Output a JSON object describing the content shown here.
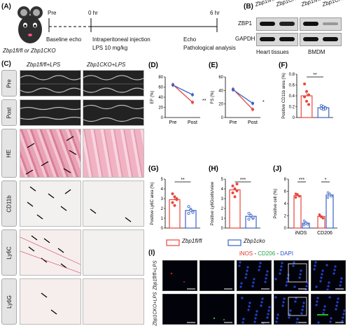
{
  "panels": {
    "A": {
      "letter": "(A)",
      "pre": "Pre",
      "hr0": "0 hr",
      "hr6": "6 hr",
      "baseline": "Baseline echo",
      "injection": "Intraperitoneal injection",
      "lps": "LPS 10 mg/kg",
      "echo": "Echo",
      "pathology": "Pathological analysis",
      "mice": "Zbp1fl/fl or Zbp1CKO"
    },
    "B": {
      "letter": "(B)",
      "col1": "Zbp1fl/fl",
      "col2": "Zbp1CKO",
      "row1": "ZBP1",
      "row2": "GAPDH",
      "tissue1": "Heart tissues",
      "tissue2": "BMDM"
    },
    "C": {
      "letter": "(C)",
      "col1": "Zbp1fl/fl+LPS",
      "col2": "Zbp1CKO+LPS",
      "rows": [
        "Pre",
        "Post",
        "HE",
        "CD11b",
        "Ly6C",
        "Ly6G"
      ]
    },
    "D": {
      "letter": "(D)",
      "ylabel": "EF (%)",
      "sig": "**"
    },
    "E": {
      "letter": "(E)",
      "ylabel": "FS (%)",
      "sig": "*"
    },
    "F": {
      "letter": "(F)",
      "ylabel": "Positive CD11b area (%)",
      "sig": "**"
    },
    "G": {
      "letter": "(G)",
      "ylabel": "Positive Ly6C area (%)",
      "sig": "**"
    },
    "H": {
      "letter": "(H)",
      "ylabel": "Positive Ly6Gcells/view",
      "sig": "***"
    },
    "J": {
      "letter": "(J)",
      "ylabel": "Positive cell (%)",
      "sig1": "***",
      "sig2": "*"
    },
    "I": {
      "letter": "(I)",
      "title_ir": "iNOS",
      "title_sep": " - ",
      "title_cd": "CD206",
      "title_dapi": "DAPI",
      "row1": "Zbp1fl/fl+LPS",
      "row2": "Zbp1CKO+LPS"
    }
  },
  "legend": {
    "fl": "Zbp1fl/fl",
    "cko": "Zbp1cko"
  },
  "colors": {
    "fl": "#e8473d",
    "cko": "#3a63c8"
  },
  "chart_data": [
    {
      "id": "D",
      "type": "line",
      "categories": [
        "Pre",
        "Post"
      ],
      "series": [
        {
          "name": "Zbp1fl/fl",
          "values": [
            65,
            30
          ]
        },
        {
          "name": "Zbp1cko",
          "values": [
            64,
            45
          ]
        }
      ],
      "ylim": [
        0,
        80
      ],
      "yticks": [
        0,
        20,
        40,
        60,
        80
      ],
      "ylabel": "EF (%)"
    },
    {
      "id": "E",
      "type": "line",
      "categories": [
        "Pre",
        "Post"
      ],
      "series": [
        {
          "name": "Zbp1fl/fl",
          "values": [
            42,
            12
          ]
        },
        {
          "name": "Zbp1cko",
          "values": [
            41,
            21
          ]
        }
      ],
      "ylim": [
        0,
        60
      ],
      "yticks": [
        0,
        20,
        40,
        60
      ],
      "ylabel": "FS (%)"
    },
    {
      "id": "F",
      "type": "bar",
      "series": [
        {
          "name": "Zbp1fl/fl",
          "value": 0.4,
          "points": [
            0.62,
            0.48,
            0.42,
            0.38,
            0.3,
            0.24
          ]
        },
        {
          "name": "Zbp1cko",
          "value": 0.18,
          "points": [
            0.22,
            0.2,
            0.18,
            0.17,
            0.15,
            0.16
          ]
        }
      ],
      "ylim": [
        0,
        0.8
      ],
      "yticks": [
        0.0,
        0.2,
        0.4,
        0.6,
        0.8
      ],
      "ylabel": "Positive CD11b area (%)"
    },
    {
      "id": "G",
      "type": "bar",
      "series": [
        {
          "name": "Zbp1fl/fl",
          "value": 2.9,
          "points": [
            3.5,
            3.2,
            2.9,
            2.6,
            2.3,
            3.0
          ]
        },
        {
          "name": "Zbp1cko",
          "value": 1.8,
          "points": [
            2.2,
            1.9,
            1.7,
            1.5,
            1.8,
            1.6
          ]
        }
      ],
      "ylim": [
        0,
        5
      ],
      "yticks": [
        0,
        1,
        2,
        3,
        4,
        5
      ],
      "ylabel": "Positive Ly6C area (%)"
    },
    {
      "id": "H",
      "type": "bar",
      "series": [
        {
          "name": "Zbp1fl/fl",
          "value": 3.9,
          "points": [
            4.3,
            4.0,
            3.8,
            3.6,
            3.2,
            4.5
          ]
        },
        {
          "name": "Zbp1cko",
          "value": 1.2,
          "points": [
            1.5,
            1.2,
            1.0,
            0.9,
            1.3,
            1.1
          ]
        }
      ],
      "ylim": [
        0,
        5
      ],
      "yticks": [
        0,
        1,
        2,
        3,
        4,
        5
      ],
      "ylabel": "Positive Ly6Gcells/view"
    },
    {
      "id": "J",
      "type": "bar",
      "categories": [
        "iNOS",
        "CD206"
      ],
      "series": [
        {
          "name": "Zbp1fl/fl",
          "values": [
            5.3,
            1.9
          ],
          "points": [
            [
              5.6,
              5.4,
              5.2,
              5.0,
              5.5
            ],
            [
              2.2,
              1.8,
              1.6,
              2.0,
              1.9
            ]
          ]
        },
        {
          "name": "Zbp1cko",
          "values": [
            0.8,
            5.4
          ],
          "points": [
            [
              1.2,
              0.9,
              0.6,
              0.5,
              0.8
            ],
            [
              5.8,
              5.6,
              5.2,
              5.0,
              5.4
            ]
          ]
        }
      ],
      "ylim": [
        0,
        8
      ],
      "yticks": [
        0,
        2,
        4,
        6,
        8
      ],
      "ylabel": "Positive cell (%)"
    }
  ]
}
